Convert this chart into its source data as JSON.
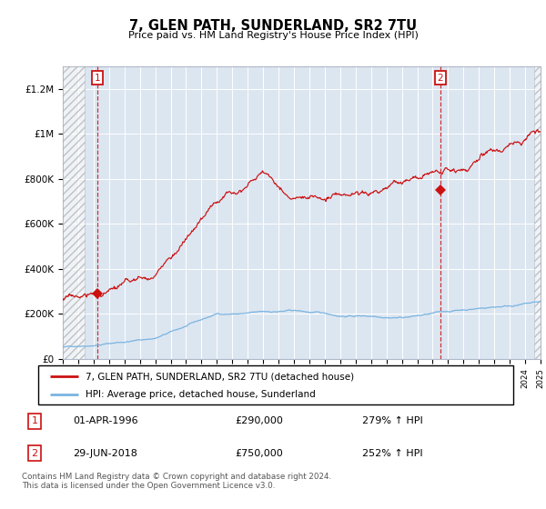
{
  "title": "7, GLEN PATH, SUNDERLAND, SR2 7TU",
  "subtitle": "Price paid vs. HM Land Registry's House Price Index (HPI)",
  "ylabel_ticks": [
    "£0",
    "£200K",
    "£400K",
    "£600K",
    "£800K",
    "£1M",
    "£1.2M"
  ],
  "ytick_values": [
    0,
    200000,
    400000,
    600000,
    800000,
    1000000,
    1200000
  ],
  "ylim": [
    0,
    1300000
  ],
  "xlim_start": 1994,
  "xlim_end": 2025,
  "sale1_x": 1996.25,
  "sale1_y": 290000,
  "sale2_x": 2018.5,
  "sale2_y": 750000,
  "legend_line1": "7, GLEN PATH, SUNDERLAND, SR2 7TU (detached house)",
  "legend_line2": "HPI: Average price, detached house, Sunderland",
  "annot1_label": "1",
  "annot1_date": "01-APR-1996",
  "annot1_price": "£290,000",
  "annot1_hpi": "279% ↑ HPI",
  "annot2_label": "2",
  "annot2_date": "29-JUN-2018",
  "annot2_price": "£750,000",
  "annot2_hpi": "252% ↑ HPI",
  "copyright": "Contains HM Land Registry data © Crown copyright and database right 2024.\nThis data is licensed under the Open Government Licence v3.0.",
  "hpi_color": "#7ab4e0",
  "sale_color": "#cc1111",
  "bg_plot_color": "#dce6f1",
  "grid_color": "#ffffff",
  "dashed_line_color": "#cc1111",
  "hatch_left_end": 1995.4,
  "hatch_right_start": 2024.6
}
